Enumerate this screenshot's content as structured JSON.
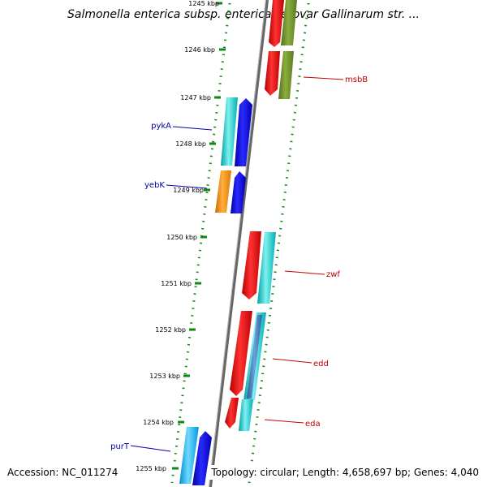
{
  "title": "Salmonella enterica subsp. enterica serovar Gallinarum str. ...",
  "accession": "Accession: NC_011274",
  "summary": "Topology: circular; Length: 4,658,697 bp; Genes: 4,040",
  "kbp_labels": [
    "1245 kbp",
    "1246 kbp",
    "1247 kbp",
    "1248 kbp",
    "1249 kbp",
    "1250 kbp",
    "1251 kbp",
    "1252 kbp",
    "1253 kbp",
    "1254 kbp",
    "1255 kbp"
  ],
  "genes": [
    {
      "name": "msbB",
      "strand": "right",
      "color": "#cc0000"
    },
    {
      "name": "pykA",
      "strand": "left",
      "color": "#0000aa"
    },
    {
      "name": "yebK",
      "strand": "left",
      "color": "#0000aa"
    },
    {
      "name": "zwf",
      "strand": "right",
      "color": "#cc0000"
    },
    {
      "name": "edd",
      "strand": "right",
      "color": "#cc0000"
    },
    {
      "name": "eda",
      "strand": "right",
      "color": "#cc0000"
    },
    {
      "name": "purT",
      "strand": "left",
      "color": "#0000aa"
    }
  ],
  "colors": {
    "forward_arrow": "#ff0000",
    "reverse_arrow": "#0000ee",
    "olive_block": "#6b8e23",
    "cyan_block": "#00cccc",
    "orange_block": "#ff8800",
    "sky_block": "#00aaff",
    "axis_dots": "#118811",
    "backbone": "#777777"
  }
}
